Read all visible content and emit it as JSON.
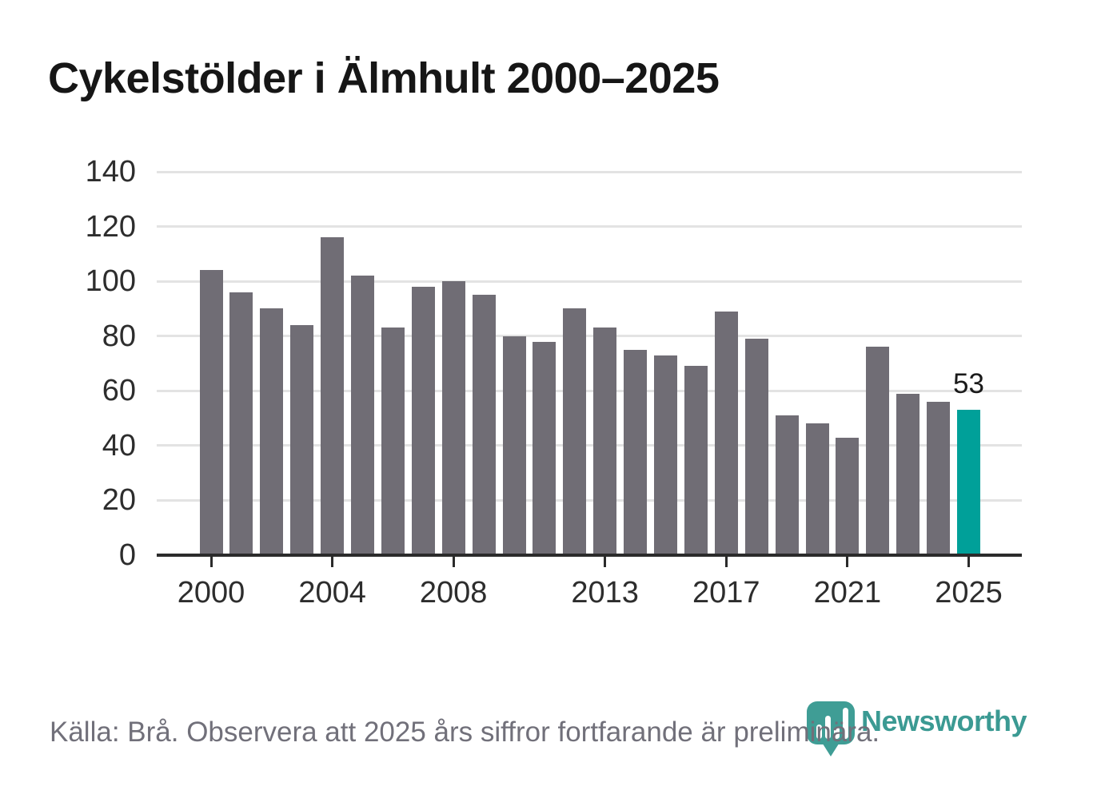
{
  "title": "Cykelstölder i Älmhult 2000–2025",
  "footer": {
    "source_note": "Källa: Brå. Observera att 2025 års siffror fortfarande är preliminära."
  },
  "logo": {
    "wordmark": "Newsworthy",
    "icon": "newsworthy-pin-barchart-icon"
  },
  "colors": {
    "bar_default": "#706d75",
    "bar_highlight": "#00a099",
    "gridline": "#e3e3e3",
    "axis_line": "#2b2b2b",
    "axis_text": "#2d2d2d",
    "title_text": "#161616",
    "footer_text": "#71707a",
    "logo_teal": "#3b9a93"
  },
  "chart_data": {
    "type": "bar",
    "title": "Cykelstölder i Älmhult 2000–2025",
    "categories": [
      "2000",
      "2001",
      "2002",
      "2003",
      "2004",
      "2005",
      "2006",
      "2007",
      "2008",
      "2009",
      "2010",
      "2011",
      "2012",
      "2013",
      "2014",
      "2015",
      "2016",
      "2017",
      "2018",
      "2019",
      "2020",
      "2021",
      "2022",
      "2023",
      "2024",
      "2025"
    ],
    "values": [
      104,
      96,
      90,
      84,
      116,
      102,
      83,
      98,
      100,
      95,
      80,
      78,
      90,
      83,
      75,
      73,
      69,
      89,
      79,
      51,
      48,
      43,
      76,
      59,
      56,
      53
    ],
    "highlight_index": 25,
    "data_label": {
      "index": 25,
      "text": "53"
    },
    "xlabel": "",
    "ylabel": "",
    "ylim": [
      0,
      140
    ],
    "y_ticks": [
      0,
      20,
      40,
      60,
      80,
      100,
      120,
      140
    ],
    "x_tick_labels": [
      "2000",
      "2004",
      "2008",
      "2013",
      "2017",
      "2021",
      "2025"
    ],
    "grid": "horizontal-only",
    "legend": "none"
  }
}
